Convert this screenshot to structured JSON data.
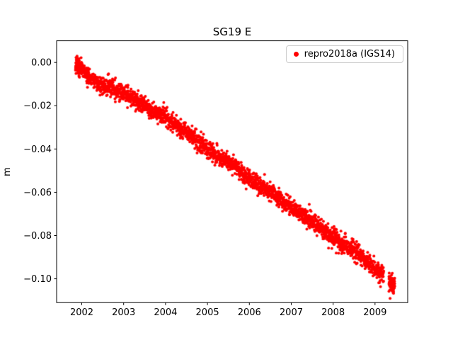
{
  "chart_data": {
    "type": "scatter",
    "title": "SG19 E",
    "xlabel": "",
    "ylabel": "m",
    "xlim": [
      2001.4,
      2009.78
    ],
    "ylim": [
      -0.111,
      0.01
    ],
    "xticks": [
      2002,
      2003,
      2004,
      2005,
      2006,
      2007,
      2008,
      2009
    ],
    "xtick_labels": [
      "2002",
      "2003",
      "2004",
      "2005",
      "2006",
      "2007",
      "2008",
      "2009"
    ],
    "yticks": [
      0.0,
      -0.02,
      -0.04,
      -0.06,
      -0.08,
      -0.1
    ],
    "ytick_labels": [
      "0.00",
      "−0.02",
      "−0.04",
      "−0.06",
      "−0.08",
      "−0.10"
    ],
    "grid": false,
    "legend": {
      "position": "upper right",
      "entries": [
        {
          "label": "repro2018a (IGS14)",
          "marker": "dot",
          "color": "#ff0000"
        }
      ]
    },
    "series": [
      {
        "name": "repro2018a (IGS14)",
        "color": "#ff0000",
        "marker": ".",
        "marker_radius_px": 2,
        "x_start": 2001.85,
        "x_end": 2009.47,
        "n_points": 2500,
        "noise_sigma": 0.002,
        "trend_description": "Approximately linear drift of about -0.0136 m/yr, from ~0.000 m in late 2001 to ~-0.103 m in mid 2009",
        "trend_anchors": [
          [
            2001.85,
            -0.001
          ],
          [
            2002.0,
            -0.003
          ],
          [
            2002.2,
            -0.007
          ],
          [
            2002.5,
            -0.0105
          ],
          [
            2002.8,
            -0.0125
          ],
          [
            2003.0,
            -0.014
          ],
          [
            2003.3,
            -0.0175
          ],
          [
            2003.6,
            -0.0215
          ],
          [
            2003.9,
            -0.024
          ],
          [
            2004.2,
            -0.0285
          ],
          [
            2004.5,
            -0.032
          ],
          [
            2004.8,
            -0.037
          ],
          [
            2005.0,
            -0.04
          ],
          [
            2005.3,
            -0.044
          ],
          [
            2005.6,
            -0.0475
          ],
          [
            2005.9,
            -0.0525
          ],
          [
            2006.2,
            -0.056
          ],
          [
            2006.5,
            -0.0595
          ],
          [
            2006.8,
            -0.064
          ],
          [
            2007.0,
            -0.067
          ],
          [
            2007.3,
            -0.071
          ],
          [
            2007.6,
            -0.0745
          ],
          [
            2007.9,
            -0.0795
          ],
          [
            2008.2,
            -0.0835
          ],
          [
            2008.5,
            -0.087
          ],
          [
            2008.8,
            -0.092
          ],
          [
            2009.0,
            -0.0955
          ],
          [
            2009.2,
            -0.0985
          ],
          [
            2009.34,
            -0.102
          ],
          [
            2009.47,
            -0.1035
          ]
        ],
        "gaps": [
          [
            2009.21,
            2009.33
          ]
        ],
        "extra_clusters": [
          {
            "x0": 2001.86,
            "x1": 2002.02,
            "n": 90
          },
          {
            "x0": 2009.33,
            "x1": 2009.47,
            "n": 60
          }
        ],
        "outliers": [
          [
            2008.45,
            -0.0815
          ]
        ]
      }
    ]
  }
}
